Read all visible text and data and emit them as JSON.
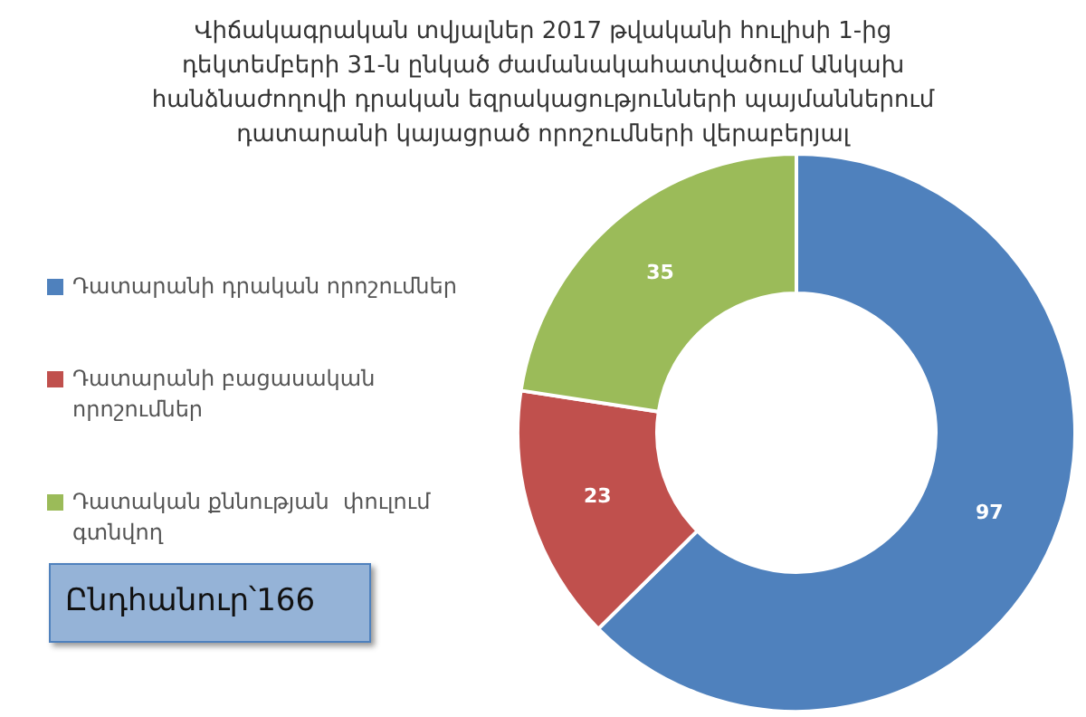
{
  "chart_data": {
    "type": "donut",
    "title": "Վիճակագրական տվյալներ 2017 թվականի հուլիսի 1-ից դեկտեմբերի 31-ն ընկած ժամանակահատվածում Անկախ հանձնաժողովի դրական եզրակացությունների պայմաններում դատարանի կայացրած որոշումների վերաբերյալ",
    "categories": [
      "Դատարանի դրական որոշումներ",
      "Դատարանի բացասական որոշումներ",
      "Դատական քննության  փուլում գտնվող"
    ],
    "values": [
      97,
      23,
      35
    ],
    "colors": [
      "#4f81bd",
      "#c0504d",
      "#9bbb59"
    ],
    "data_labels": true,
    "legend": "left",
    "annotations": [
      "Ընդհանուր՝166"
    ]
  }
}
